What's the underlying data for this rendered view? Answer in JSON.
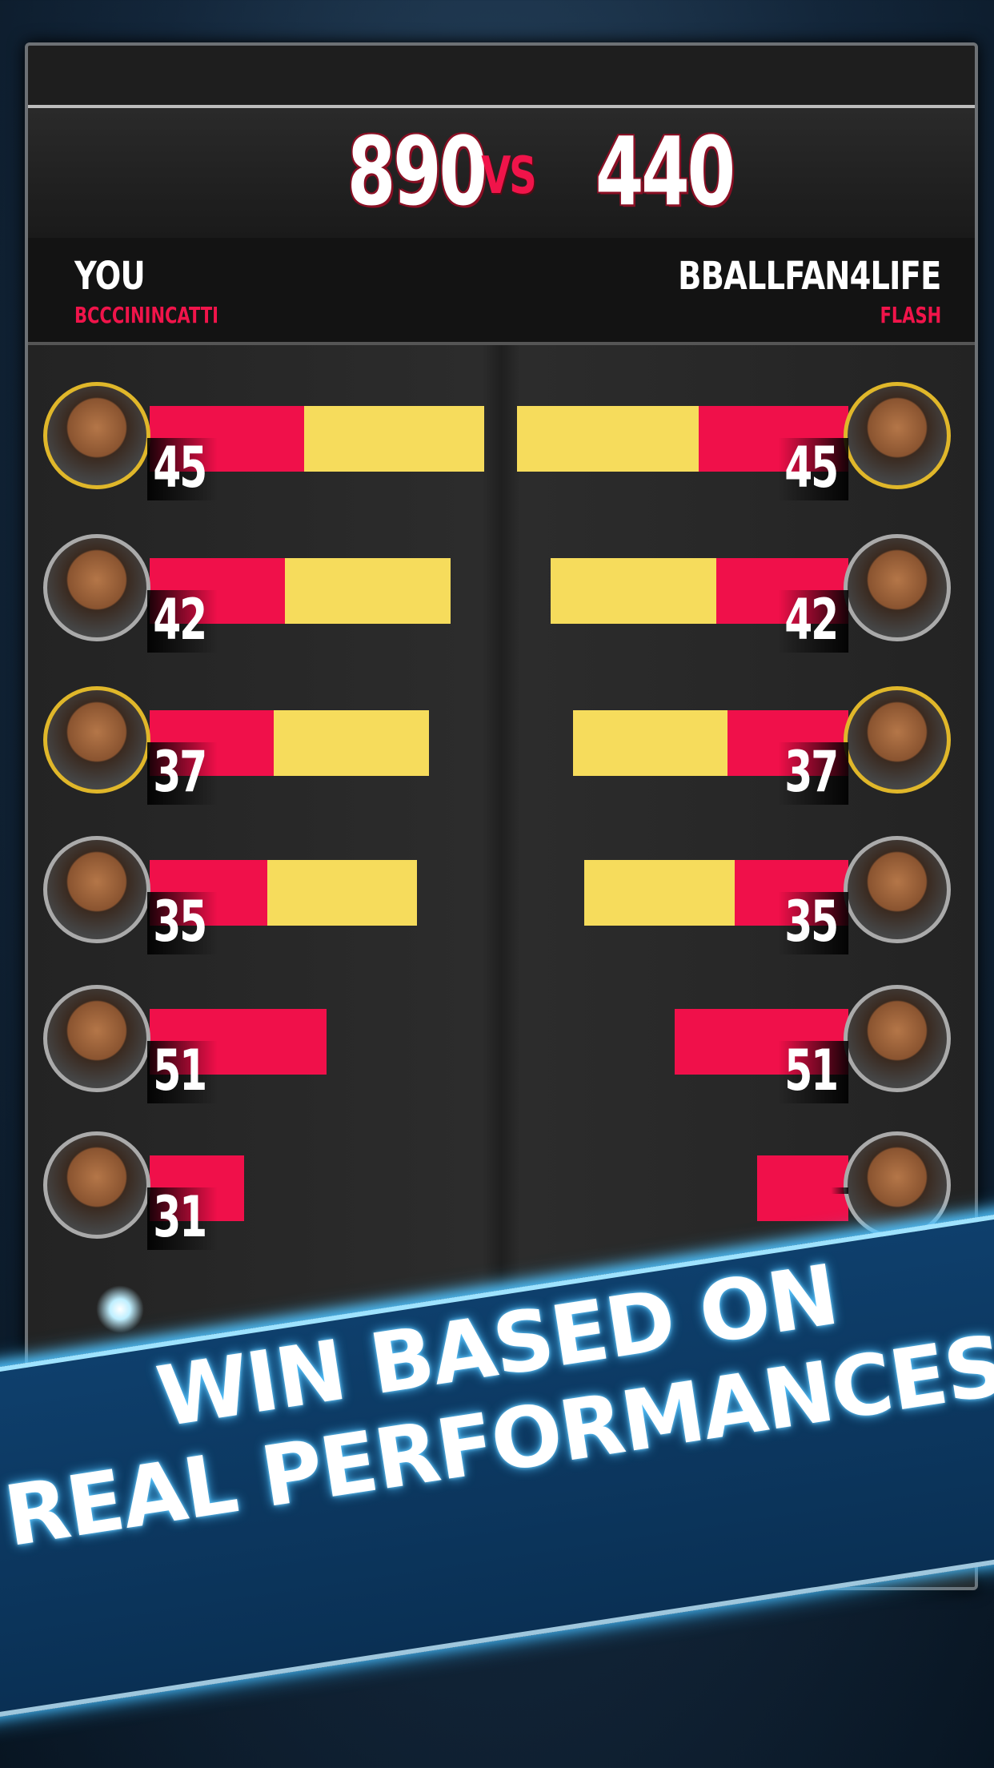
{
  "match": {
    "your_score": "890",
    "vs_label": "VS",
    "opponent_score": "440"
  },
  "players": {
    "you": {
      "label": "YOU",
      "username": "BCCCININCATTI"
    },
    "opponent": {
      "label": "BBALLFAN4LIFE",
      "username": "FLASH"
    }
  },
  "rows": [
    {
      "left_score": "45",
      "right_score": "45",
      "left_ring": "gold",
      "right_ring": "gold"
    },
    {
      "left_score": "42",
      "right_score": "42",
      "left_ring": "silver",
      "right_ring": "silver"
    },
    {
      "left_score": "37",
      "right_score": "37",
      "left_ring": "gold",
      "right_ring": "gold"
    },
    {
      "left_score": "35",
      "right_score": "35",
      "left_ring": "silver",
      "right_ring": "silver"
    },
    {
      "left_score": "51",
      "right_score": "51",
      "left_ring": "silver",
      "right_ring": "silver"
    },
    {
      "left_score": "31",
      "right_score": "",
      "left_ring": "silver",
      "right_ring": "silver"
    }
  ],
  "banner": {
    "line1": "WIN BASED ON",
    "line2": "REAL PERFORMANCES!"
  },
  "colors": {
    "accent_red": "#f0104a",
    "bar_yellow": "#f6dc5c",
    "banner_blue": "#0e3f6c"
  }
}
